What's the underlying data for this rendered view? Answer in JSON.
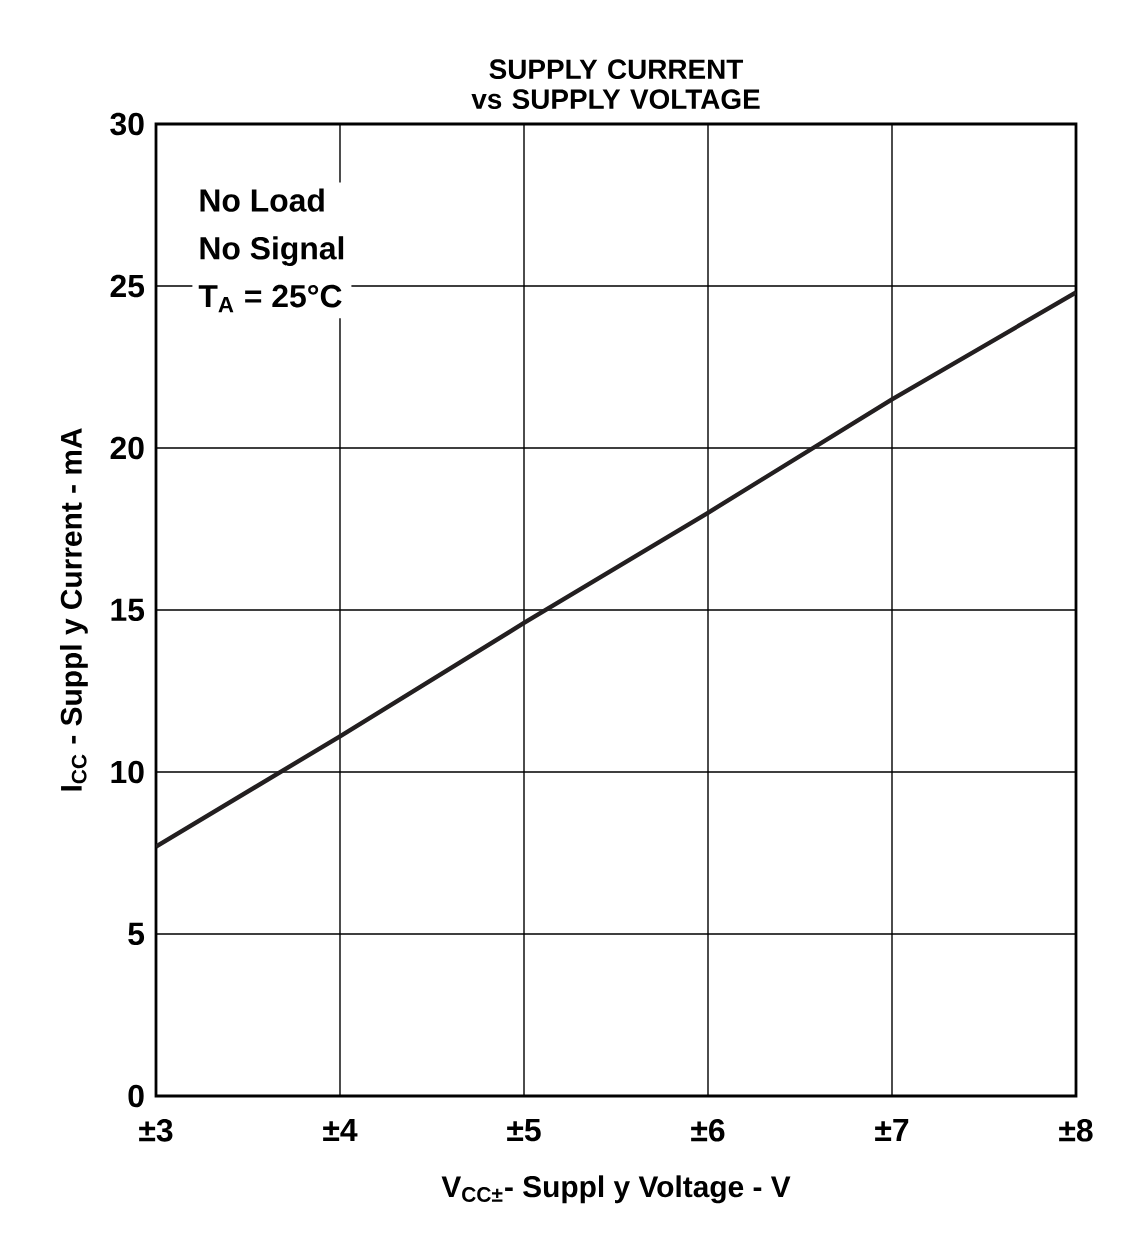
{
  "chart_data": {
    "type": "line",
    "title": "SUPPLY CURRENT vs SUPPLY VOLTAGE",
    "xlabel": "V$_{CC±}$- Suppl y Voltage -  V",
    "ylabel": "I$_{CC}$ - Suppl y Current - mA",
    "x": [
      3,
      4,
      5,
      6,
      7,
      8
    ],
    "series": [
      {
        "color": "#231f20",
        "values": [
          7.7,
          11.1,
          14.6,
          18.0,
          21.5,
          24.8
        ]
      }
    ],
    "xlim": [
      3,
      8
    ],
    "ylim": [
      0,
      30
    ],
    "xticks": [
      {
        "value": 3,
        "label": "±3"
      },
      {
        "value": 4,
        "label": "±4"
      },
      {
        "value": 5,
        "label": "±5"
      },
      {
        "value": 6,
        "label": "±6"
      },
      {
        "value": 7,
        "label": "±7"
      },
      {
        "value": 8,
        "label": "±8"
      }
    ],
    "yticks": [
      0,
      5,
      10,
      15,
      20,
      25,
      30
    ],
    "grid": true,
    "marker": "none",
    "line_style": "solid",
    "annotations": [
      "No Load",
      "No Signal",
      "T$_{A}$ = 25°C"
    ]
  }
}
